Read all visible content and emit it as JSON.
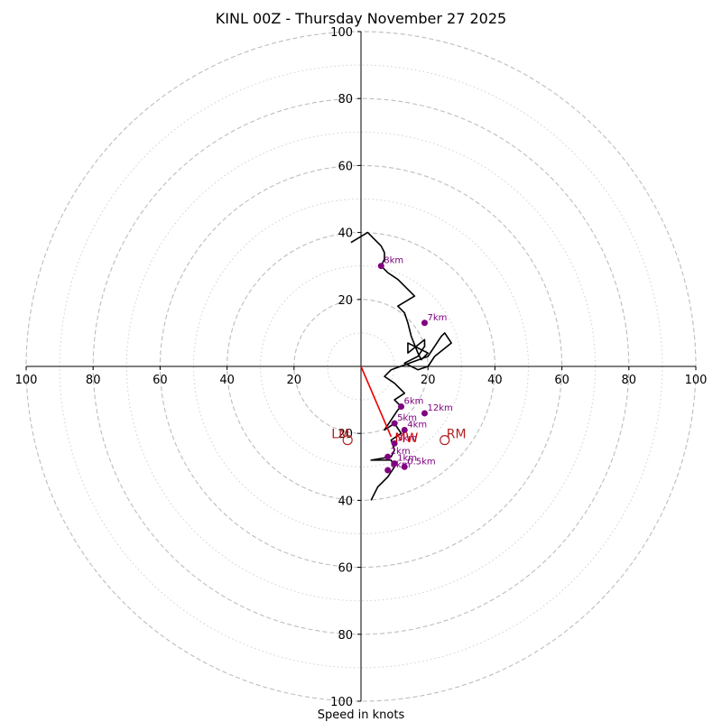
{
  "chart_data": {
    "type": "hodograph",
    "title": "KINL 00Z - Thursday November 27 2025",
    "xlabel": "Speed in knots",
    "ylabel": "",
    "xlim": [
      -100,
      100
    ],
    "ylim": [
      -100,
      100
    ],
    "rings_major": [
      20,
      40,
      60,
      80,
      100
    ],
    "rings_minor": [
      10,
      30,
      50,
      70,
      90
    ],
    "x_ticks": [
      {
        "value": -100,
        "label": "100"
      },
      {
        "value": -80,
        "label": "80"
      },
      {
        "value": -60,
        "label": "60"
      },
      {
        "value": -40,
        "label": "40"
      },
      {
        "value": -20,
        "label": "20"
      },
      {
        "value": 20,
        "label": "20"
      },
      {
        "value": 40,
        "label": "40"
      },
      {
        "value": 60,
        "label": "60"
      },
      {
        "value": 80,
        "label": "80"
      },
      {
        "value": 100,
        "label": "100"
      }
    ],
    "y_ticks": [
      {
        "value": 100,
        "label": "100"
      },
      {
        "value": 80,
        "label": "80"
      },
      {
        "value": 60,
        "label": "60"
      },
      {
        "value": 40,
        "label": "40"
      },
      {
        "value": 20,
        "label": "20"
      },
      {
        "value": -20,
        "label": "20"
      },
      {
        "value": -40,
        "label": "40"
      },
      {
        "value": -60,
        "label": "60"
      },
      {
        "value": -80,
        "label": "80"
      },
      {
        "value": -100,
        "label": "100"
      }
    ],
    "hodograph": {
      "color": "#000000",
      "points": [
        [
          3,
          -40
        ],
        [
          5,
          -36
        ],
        [
          8,
          -33
        ],
        [
          10,
          -30
        ],
        [
          9,
          -28
        ],
        [
          6,
          -28
        ],
        [
          3,
          -28
        ],
        [
          9,
          -27
        ],
        [
          10,
          -25
        ],
        [
          9,
          -22
        ],
        [
          12,
          -20
        ],
        [
          10,
          -17
        ],
        [
          7,
          -19
        ],
        [
          9,
          -16
        ],
        [
          11,
          -13
        ],
        [
          12,
          -12
        ],
        [
          10,
          -10
        ],
        [
          13,
          -8
        ],
        [
          10,
          -5
        ],
        [
          7,
          -3
        ],
        [
          9,
          -1
        ],
        [
          20,
          3
        ],
        [
          24,
          9
        ],
        [
          25,
          10
        ],
        [
          27,
          7
        ],
        [
          22,
          3
        ],
        [
          20,
          0
        ],
        [
          17,
          -1
        ],
        [
          13,
          1
        ],
        [
          17,
          3
        ],
        [
          19,
          6
        ],
        [
          19,
          8
        ],
        [
          14,
          4
        ],
        [
          14,
          7
        ],
        [
          20,
          4
        ],
        [
          18,
          2
        ],
        [
          17,
          4
        ],
        [
          15,
          9
        ],
        [
          14,
          13
        ],
        [
          13,
          16
        ],
        [
          11,
          18
        ],
        [
          16,
          21
        ],
        [
          13,
          24
        ],
        [
          11,
          26
        ],
        [
          8,
          28
        ],
        [
          6,
          30
        ],
        [
          7,
          32
        ],
        [
          7,
          34
        ],
        [
          6,
          36
        ],
        [
          4,
          38
        ],
        [
          2,
          40
        ],
        [
          -3,
          37
        ]
      ]
    },
    "height_markers": [
      {
        "label": "8km",
        "u": 6,
        "v": 30
      },
      {
        "label": "7km",
        "u": 19,
        "v": 13
      },
      {
        "label": "6km",
        "u": 12,
        "v": -12
      },
      {
        "label": "12km",
        "u": 19,
        "v": -14
      },
      {
        "label": "5km",
        "u": 10,
        "v": -17
      },
      {
        "label": "4km",
        "u": 13,
        "v": -19
      },
      {
        "label": "3km",
        "u": 10,
        "v": -23
      },
      {
        "label": "2km",
        "u": 8,
        "v": -27
      },
      {
        "label": "1km",
        "u": 10,
        "v": -29
      },
      {
        "label": "0.5km",
        "u": 13,
        "v": -30
      },
      {
        "label": "0km",
        "u": 8,
        "v": -31
      }
    ],
    "marker_color": "#800080",
    "mean_wind": {
      "label": "MW",
      "u": 9,
      "v": -21,
      "color": "#cc0000"
    },
    "shear_vector": {
      "from": [
        0,
        0
      ],
      "to": [
        9,
        -21
      ],
      "color": "#ee0000"
    },
    "storm_motions": [
      {
        "label": "LM",
        "u": -4,
        "v": -22,
        "color": "#b22222"
      },
      {
        "label": "RM",
        "u": 25,
        "v": -22,
        "color": "#b22222"
      }
    ],
    "grid": true
  }
}
